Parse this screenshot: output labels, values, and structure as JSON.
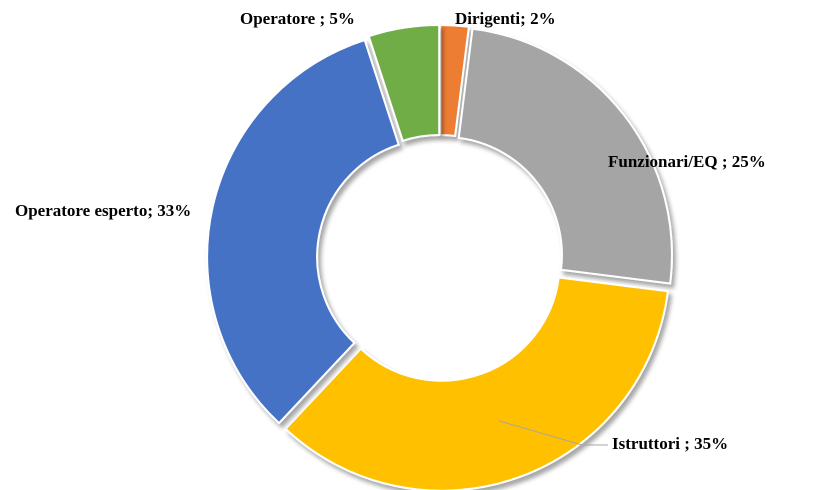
{
  "chart_data": {
    "type": "donut",
    "categories": [
      "Dirigenti",
      "Funzionari/EQ",
      "Istruttori",
      "Operatore esperto",
      "Operatore"
    ],
    "label_separators": [
      "; ",
      " ; ",
      " ; ",
      "; ",
      " ; "
    ],
    "values": [
      2,
      25,
      35,
      33,
      5
    ],
    "value_labels": [
      "2%",
      "25%",
      "35%",
      "33%",
      "5%"
    ],
    "colors": [
      "#ed7d31",
      "#a5a5a5",
      "#ffc000",
      "#4472c4",
      "#70ad47"
    ]
  }
}
